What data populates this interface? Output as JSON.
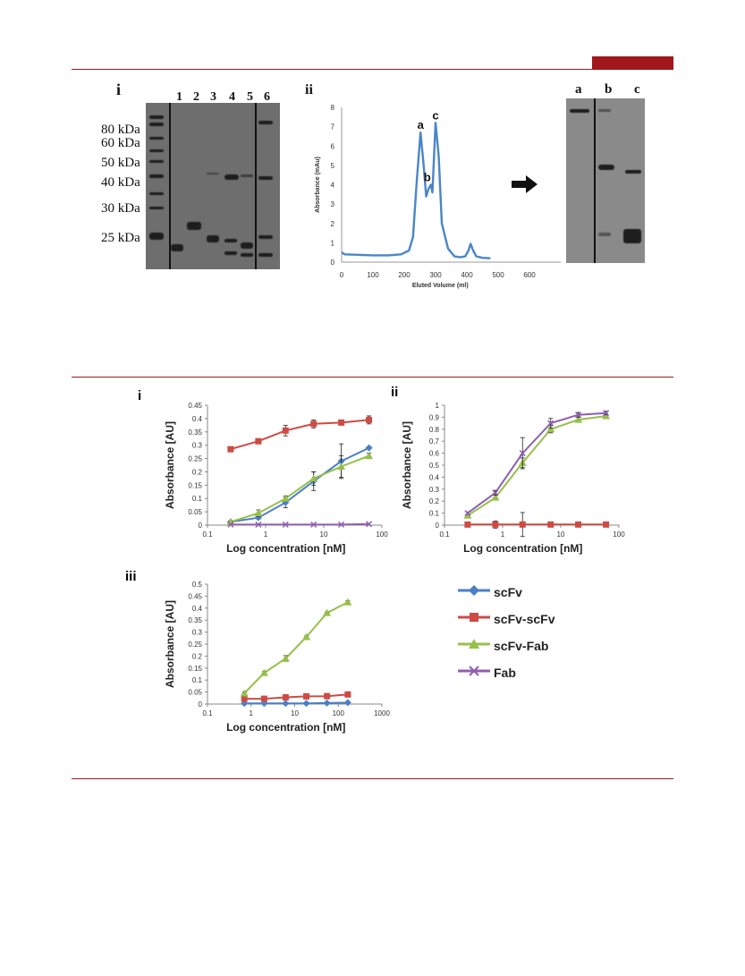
{
  "panel_top": {
    "label_i": "i",
    "label_ii": "ii",
    "kda_markers": [
      "80 kDa",
      "60 kDa",
      "50 kDa",
      "40 kDa",
      "30 kDa",
      "25 kDa"
    ],
    "lanes": [
      "1",
      "2",
      "3",
      "4",
      "5",
      "6"
    ],
    "fraction_lanes": [
      "a",
      "b",
      "c"
    ]
  },
  "chart_data": [
    {
      "type": "line",
      "ylabel": "Absorbance (mAu)",
      "xlabel": "Eluted Volume (ml)",
      "xlim": [
        0,
        700
      ],
      "ylim": [
        0,
        8
      ],
      "xticks": [
        "0",
        "100",
        "200",
        "300",
        "400",
        "500",
        "600"
      ],
      "yticks": [
        "0",
        "1",
        "2",
        "3",
        "4",
        "5",
        "6",
        "7",
        "8"
      ],
      "series": [
        {
          "x": [
            0,
            10,
            50,
            100,
            150,
            190,
            215,
            228,
            240,
            252,
            262,
            270,
            278,
            285,
            290,
            300,
            310,
            320,
            340,
            360,
            380,
            395,
            405,
            412,
            420,
            430,
            450,
            475
          ],
          "y": [
            0.5,
            0.4,
            0.38,
            0.35,
            0.35,
            0.4,
            0.6,
            1.3,
            4.2,
            6.7,
            5.0,
            3.4,
            3.8,
            4.0,
            3.6,
            7.2,
            5.5,
            2.0,
            0.7,
            0.3,
            0.25,
            0.3,
            0.6,
            0.95,
            0.6,
            0.3,
            0.22,
            0.2
          ]
        }
      ],
      "annotations": [
        {
          "text": "a",
          "x": 252,
          "y": 6.7
        },
        {
          "text": "b",
          "x": 285,
          "y": 4.0
        },
        {
          "text": "c",
          "x": 300,
          "y": 7.2
        }
      ]
    },
    {
      "type": "line",
      "panel": "i",
      "xlabel": "Log concentration  [nM]",
      "ylabel": "Absorbance  [AU]",
      "xscale": "log",
      "xlim": [
        0.1,
        100
      ],
      "ylim": [
        0,
        0.45
      ],
      "xticks": [
        "0.1",
        "1",
        "10",
        "100"
      ],
      "yticks": [
        "0",
        "0.05",
        "0.1",
        "0.15",
        "0.2",
        "0.25",
        "0.3",
        "0.35",
        "0.4",
        "0.45"
      ],
      "series": [
        {
          "name": "scFv",
          "x": [
            0.25,
            0.75,
            2.2,
            6.7,
            20,
            60
          ],
          "y": [
            0.012,
            0.028,
            0.085,
            0.165,
            0.24,
            0.29
          ],
          "err": [
            0.003,
            0.005,
            0.02,
            0.035,
            0.065,
            0.004
          ]
        },
        {
          "name": "scFv-scFv",
          "x": [
            0.25,
            0.75,
            2.2,
            6.7,
            20,
            60
          ],
          "y": [
            0.285,
            0.315,
            0.355,
            0.38,
            0.385,
            0.395
          ],
          "err": [
            0.004,
            0.006,
            0.02,
            0.015,
            0.008,
            0.015
          ]
        },
        {
          "name": "scFv-Fab",
          "x": [
            0.25,
            0.75,
            2.2,
            6.7,
            20,
            60
          ],
          "y": [
            0.012,
            0.045,
            0.1,
            0.175,
            0.22,
            0.26
          ],
          "err": [
            0.003,
            0.012,
            0.01,
            0.025,
            0.04,
            0.01
          ]
        },
        {
          "name": "Fab",
          "x": [
            0.25,
            0.75,
            2.2,
            6.7,
            20,
            60
          ],
          "y": [
            0.002,
            0.002,
            0.002,
            0.002,
            0.002,
            0.004
          ],
          "err": [
            0,
            0,
            0,
            0,
            0,
            0
          ]
        }
      ]
    },
    {
      "type": "line",
      "panel": "ii",
      "xlabel": "Log concentration  [nM]",
      "ylabel": "Absorbance  [AU]",
      "xscale": "log",
      "xlim": [
        0.1,
        100
      ],
      "ylim": [
        0,
        1
      ],
      "xticks": [
        "0.1",
        "1",
        "10",
        "100"
      ],
      "yticks": [
        "0",
        "0.1",
        "0.2",
        "0.3",
        "0.4",
        "0.5",
        "0.6",
        "0.7",
        "0.8",
        "0.9",
        "1"
      ],
      "series": [
        {
          "name": "scFv-scFv",
          "x": [
            0.25,
            0.75,
            2.2,
            6.7,
            20,
            60
          ],
          "y": [
            0.005,
            0.005,
            0.005,
            0.005,
            0.005,
            0.005
          ],
          "err": [
            0.02,
            0.03,
            0.1,
            0.015,
            0.005,
            0.005
          ]
        },
        {
          "name": "scFv-Fab",
          "x": [
            0.25,
            0.75,
            2.2,
            6.7,
            20,
            60
          ],
          "y": [
            0.08,
            0.23,
            0.52,
            0.8,
            0.88,
            0.91
          ],
          "err": [
            0.01,
            0.02,
            0.04,
            0.03,
            0.02,
            0.02
          ]
        },
        {
          "name": "Fab",
          "x": [
            0.25,
            0.75,
            2.2,
            6.7,
            20,
            60
          ],
          "y": [
            0.1,
            0.27,
            0.6,
            0.85,
            0.92,
            0.935
          ],
          "err": [
            0.01,
            0.02,
            0.13,
            0.04,
            0.02,
            0.015
          ]
        }
      ]
    },
    {
      "type": "line",
      "panel": "iii",
      "xlabel": "Log concentration  [nM]",
      "ylabel": "Absorbance  [AU]",
      "xscale": "log",
      "xlim": [
        0.1,
        1000
      ],
      "ylim": [
        0,
        0.5
      ],
      "xticks": [
        "0.1",
        "1",
        "10",
        "100",
        "1000"
      ],
      "yticks": [
        "0",
        "0.05",
        "0.1",
        "0.15",
        "0.2",
        "0.25",
        "0.3",
        "0.35",
        "0.4",
        "0.45",
        "0.5"
      ],
      "series": [
        {
          "name": "scFv",
          "x": [
            0.7,
            2,
            6.2,
            18.5,
            55,
            165
          ],
          "y": [
            0.003,
            0.003,
            0.003,
            0.003,
            0.004,
            0.006
          ],
          "err": [
            0,
            0,
            0,
            0,
            0,
            0
          ]
        },
        {
          "name": "scFv-scFv",
          "x": [
            0.7,
            2,
            6.2,
            18.5,
            55,
            165
          ],
          "y": [
            0.022,
            0.022,
            0.028,
            0.032,
            0.033,
            0.04
          ],
          "err": [
            0.005,
            0.01,
            0.004,
            0.004,
            0.003,
            0.004
          ]
        },
        {
          "name": "scFv-Fab",
          "x": [
            0.7,
            2,
            6.2,
            18.5,
            55,
            165
          ],
          "y": [
            0.045,
            0.13,
            0.19,
            0.28,
            0.38,
            0.425
          ],
          "err": [
            0.005,
            0.005,
            0.012,
            0.004,
            0.004,
            0.006
          ]
        }
      ]
    }
  ],
  "panel_labels": {
    "i": "i",
    "ii": "ii",
    "iii": "iii"
  },
  "legend": [
    {
      "name": "scFv",
      "color": "#4a7fc8",
      "marker": "diamond"
    },
    {
      "name": "scFv-scFv",
      "color": "#cf4a44",
      "marker": "square"
    },
    {
      "name": "scFv-Fab",
      "color": "#96c04a",
      "marker": "triangle"
    },
    {
      "name": "Fab",
      "color": "#8e5fb0",
      "marker": "x"
    }
  ]
}
